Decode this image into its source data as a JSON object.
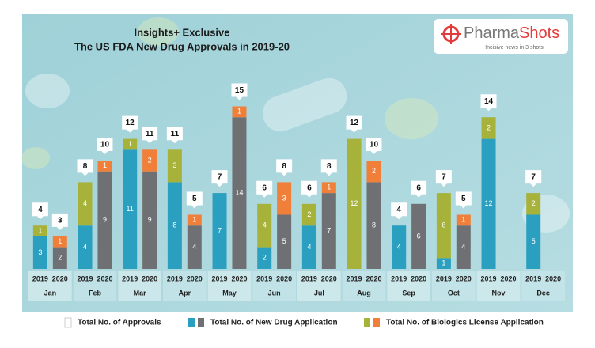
{
  "chart_data": {
    "type": "bar",
    "title": "Insights+ Exclusive",
    "subtitle": "The US FDA New Drug Approvals in 2019-20",
    "logo": {
      "first": "Pharma",
      "second": "Shots",
      "tagline": "Incisive news in 3 shots"
    },
    "categories": [
      "Jan",
      "Feb",
      "Mar",
      "Apr",
      "May",
      "Jun",
      "Jul",
      "Aug",
      "Sep",
      "Oct",
      "Nov",
      "Dec"
    ],
    "years": [
      {
        "name": "2019",
        "nda_color": "#2b9fc0",
        "bla_color": "#a7b23b",
        "nda": [
          3,
          4,
          11,
          8,
          7,
          2,
          4,
          null,
          4,
          1,
          12,
          5
        ],
        "bla": [
          1,
          4,
          1,
          3,
          null,
          4,
          2,
          12,
          null,
          6,
          2,
          2
        ],
        "total": [
          4,
          8,
          12,
          11,
          7,
          6,
          6,
          12,
          4,
          7,
          14,
          7
        ]
      },
      {
        "name": "2020",
        "nda_color": "#6f7073",
        "bla_color": "#f07f3a",
        "nda": [
          2,
          9,
          9,
          4,
          14,
          5,
          7,
          8,
          6,
          4,
          null,
          null
        ],
        "bla": [
          1,
          1,
          2,
          1,
          1,
          3,
          1,
          2,
          null,
          1,
          null,
          null
        ],
        "total": [
          3,
          10,
          11,
          5,
          15,
          8,
          8,
          10,
          6,
          5,
          null,
          null
        ]
      }
    ],
    "legend": [
      {
        "label": "Total No. of Approvals",
        "colors": [
          "#ffffff"
        ]
      },
      {
        "label": "Total No. of New Drug Application",
        "colors": [
          "#2b9fc0",
          "#6f7073"
        ]
      },
      {
        "label": "Total No. of Biologics License Application",
        "colors": [
          "#a7b23b",
          "#f07f3a"
        ]
      }
    ]
  }
}
